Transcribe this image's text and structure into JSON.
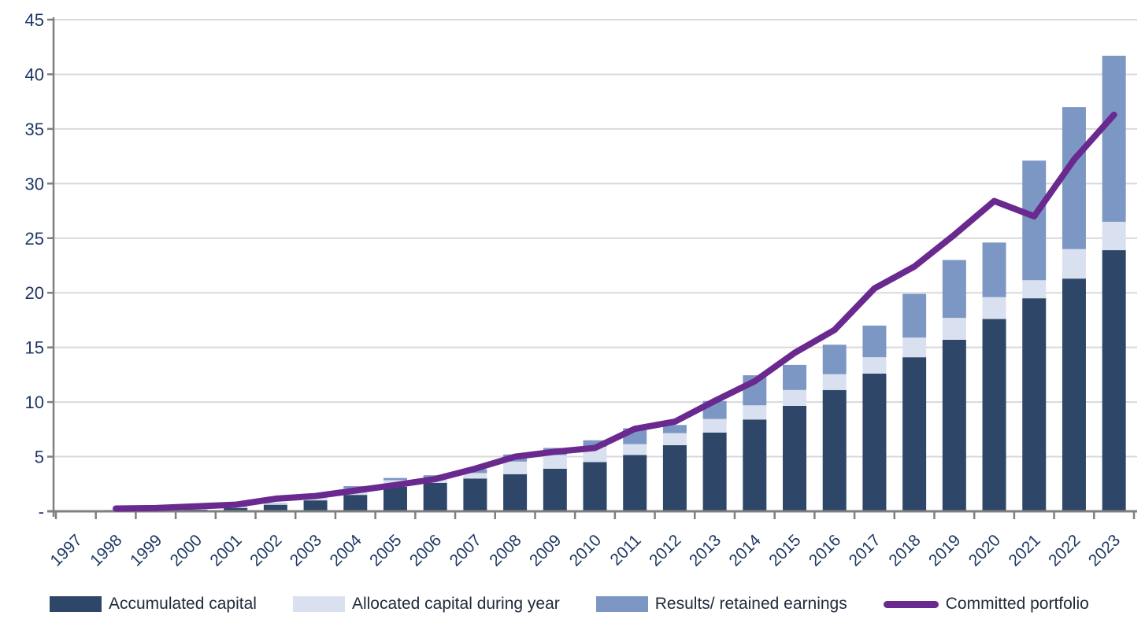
{
  "chart_data": {
    "type": "bar",
    "subtype": "stacked-bar-with-line",
    "title": "",
    "xlabel": "",
    "ylabel": "",
    "ylim": [
      0,
      45
    ],
    "y_tick_step": 5,
    "y_tick_labels": [
      "45",
      "40",
      "35",
      "30",
      "25",
      "20",
      "15",
      "10",
      "5",
      "-"
    ],
    "grid": "horizontal",
    "legend_position": "bottom",
    "categories": [
      "1997",
      "1998",
      "1999",
      "2000",
      "2001",
      "2002",
      "2003",
      "2004",
      "2005",
      "2006",
      "2007",
      "2008",
      "2009",
      "2010",
      "2011",
      "2012",
      "2013",
      "2014",
      "2015",
      "2016",
      "2017",
      "2018",
      "2019",
      "2020",
      "2021",
      "2022",
      "2023"
    ],
    "series": [
      {
        "name": "Accumulated capital",
        "type": "bar",
        "stack": "capital",
        "color": "#2E4769",
        "values": [
          0,
          0,
          0.05,
          0.15,
          0.3,
          0.6,
          1.0,
          1.5,
          2.25,
          2.6,
          3.0,
          3.4,
          3.9,
          4.5,
          5.15,
          6.05,
          7.2,
          8.4,
          9.65,
          11.1,
          12.6,
          14.1,
          15.7,
          17.6,
          19.5,
          21.3,
          23.9
        ]
      },
      {
        "name": "Allocated capital during year",
        "type": "bar",
        "stack": "capital",
        "color": "#D9E1F0",
        "values": [
          0.05,
          0.15,
          0.1,
          0.1,
          0.1,
          0.1,
          0.4,
          0.6,
          0.6,
          0.4,
          0.5,
          1.15,
          1.25,
          1.4,
          1.0,
          1.1,
          1.25,
          1.3,
          1.45,
          1.45,
          1.5,
          1.8,
          2.0,
          2.0,
          1.65,
          2.7,
          2.6
        ]
      },
      {
        "name": "Results/ retained earnings",
        "type": "bar",
        "stack": "capital",
        "color": "#7D97C5",
        "values": [
          0,
          0,
          0,
          0.05,
          0.05,
          0.05,
          0.2,
          0.2,
          0.2,
          0.3,
          0.35,
          0.65,
          0.65,
          0.6,
          1.45,
          0.75,
          1.65,
          2.75,
          2.3,
          2.7,
          2.9,
          4.0,
          5.3,
          5.0,
          10.95,
          13.0,
          15.2
        ]
      },
      {
        "name": "Committed portfolio",
        "type": "line",
        "color": "#69298F",
        "values": [
          null,
          0.25,
          0.3,
          0.45,
          0.6,
          1.15,
          1.4,
          1.9,
          2.4,
          2.95,
          3.9,
          5.0,
          5.45,
          5.8,
          7.55,
          8.2,
          10.1,
          11.9,
          14.5,
          16.6,
          20.4,
          22.4,
          25.3,
          28.4,
          27.0,
          32.2,
          36.3
        ]
      }
    ],
    "colors": {
      "gridline": "#D9D9D9",
      "axis": "#7F7F7F",
      "tick_label": "#1F3864",
      "legend_text": "#212B3C",
      "background": "#FFFFFF"
    }
  },
  "legend": {
    "items": [
      {
        "label": "Accumulated capital"
      },
      {
        "label": "Allocated capital during year"
      },
      {
        "label": "Results/ retained earnings"
      },
      {
        "label": "Committed portfolio"
      }
    ]
  }
}
